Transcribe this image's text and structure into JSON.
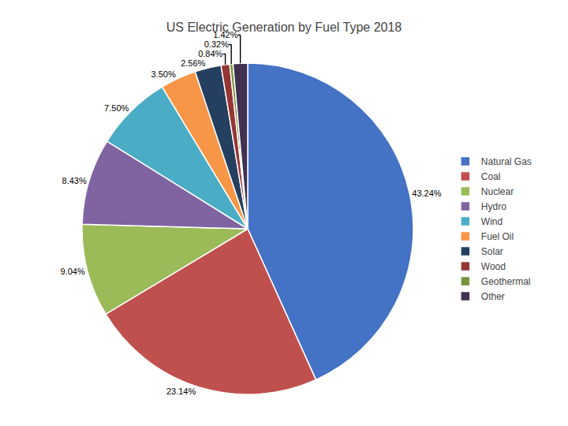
{
  "chart_data": {
    "type": "pie",
    "title": "US Electric Generation by Fuel Type 2018",
    "categories": [
      "Natural Gas",
      "Coal",
      "Nuclear",
      "Hydro",
      "Wind",
      "Fuel Oil",
      "Solar",
      "Wood",
      "Geothermal",
      "Other"
    ],
    "values": [
      43.24,
      23.14,
      9.04,
      8.43,
      7.5,
      3.5,
      2.56,
      0.84,
      0.32,
      1.42
    ],
    "value_labels": [
      "43.24%",
      "23.14%",
      "9.04%",
      "8.43%",
      "7.50%",
      "3.50%",
      "2.56%",
      "0.84%",
      "0.32%",
      "1.42%"
    ],
    "colors": [
      "#4472C4",
      "#C0504D",
      "#9BBB59",
      "#8064A2",
      "#4BACC6",
      "#F79646",
      "#243F60",
      "#963634",
      "#76933C",
      "#403151"
    ],
    "data_labels": true,
    "legend": "right"
  }
}
